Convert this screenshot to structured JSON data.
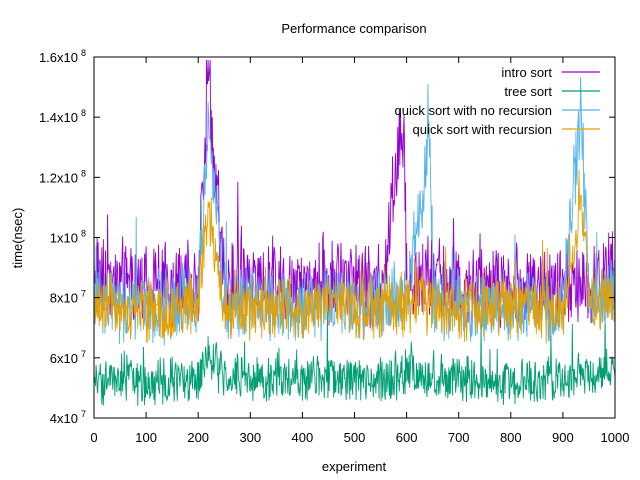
{
  "chart_data": {
    "type": "line",
    "title": "Performance comparison",
    "xlabel": "experiment",
    "ylabel": "time(nsec)",
    "xlim": [
      0,
      1000
    ],
    "ylim": [
      40000000,
      160000000
    ],
    "x_ticks": [
      {
        "value": 0,
        "label": "0"
      },
      {
        "value": 100,
        "label": "100"
      },
      {
        "value": 200,
        "label": "200"
      },
      {
        "value": 300,
        "label": "300"
      },
      {
        "value": 400,
        "label": "400"
      },
      {
        "value": 500,
        "label": "500"
      },
      {
        "value": 600,
        "label": "600"
      },
      {
        "value": 700,
        "label": "700"
      },
      {
        "value": 800,
        "label": "800"
      },
      {
        "value": 900,
        "label": "900"
      },
      {
        "value": 1000,
        "label": "1000"
      }
    ],
    "y_ticks": [
      {
        "value": 40000000,
        "base": "4x10",
        "exp": "7"
      },
      {
        "value": 60000000,
        "base": "6x10",
        "exp": "7"
      },
      {
        "value": 80000000,
        "base": "8x10",
        "exp": "7"
      },
      {
        "value": 100000000,
        "base": "1x10",
        "exp": "8"
      },
      {
        "value": 120000000,
        "base": "1.2x10",
        "exp": "8"
      },
      {
        "value": 140000000,
        "base": "1.4x10",
        "exp": "8"
      },
      {
        "value": 160000000,
        "base": "1.6x10",
        "exp": "8"
      }
    ],
    "grid": false,
    "legend_position": "top-right",
    "series": [
      {
        "name": "intro sort",
        "color": "#9400d3",
        "x": [
          0,
          50,
          100,
          150,
          200,
          220,
          250,
          300,
          350,
          400,
          450,
          500,
          550,
          595,
          600,
          650,
          700,
          750,
          800,
          850,
          900,
          950,
          1000
        ],
        "values": [
          90000000,
          85000000,
          84000000,
          82000000,
          87000000,
          152000000,
          86000000,
          85000000,
          86000000,
          84000000,
          86000000,
          85000000,
          84000000,
          141000000,
          88000000,
          87000000,
          84000000,
          85000000,
          85000000,
          84000000,
          83000000,
          86000000,
          88000000
        ]
      },
      {
        "name": "tree sort",
        "color": "#009e73",
        "x": [
          0,
          50,
          100,
          150,
          200,
          220,
          250,
          300,
          350,
          400,
          450,
          500,
          550,
          600,
          650,
          700,
          750,
          800,
          850,
          900,
          950,
          1000
        ],
        "values": [
          52000000,
          53000000,
          52000000,
          52000000,
          54000000,
          59000000,
          54000000,
          53000000,
          53000000,
          53000000,
          54000000,
          53000000,
          53000000,
          55000000,
          54000000,
          53000000,
          52000000,
          52000000,
          52000000,
          53000000,
          54000000,
          56000000
        ]
      },
      {
        "name": "quick sort with no recursion",
        "color": "#56b4e9",
        "x": [
          0,
          50,
          100,
          150,
          200,
          220,
          250,
          300,
          350,
          400,
          450,
          500,
          550,
          600,
          645,
          650,
          700,
          750,
          800,
          850,
          900,
          935,
          950,
          1000
        ],
        "values": [
          80000000,
          78000000,
          76000000,
          76000000,
          80000000,
          140000000,
          79000000,
          78000000,
          78000000,
          77000000,
          79000000,
          78000000,
          78000000,
          80000000,
          133000000,
          80000000,
          77000000,
          78000000,
          77000000,
          76000000,
          77000000,
          145000000,
          79000000,
          82000000
        ]
      },
      {
        "name": "quick sort with recursion",
        "color": "#e69f00",
        "x": [
          0,
          50,
          100,
          150,
          200,
          220,
          250,
          300,
          350,
          400,
          450,
          500,
          550,
          600,
          650,
          700,
          750,
          800,
          850,
          900,
          935,
          950,
          1000
        ],
        "values": [
          78000000,
          77000000,
          75000000,
          75000000,
          78000000,
          110000000,
          77000000,
          77000000,
          77000000,
          76000000,
          78000000,
          77000000,
          77000000,
          79000000,
          78000000,
          76000000,
          77000000,
          76000000,
          75000000,
          76000000,
          114000000,
          78000000,
          80000000
        ]
      }
    ]
  }
}
